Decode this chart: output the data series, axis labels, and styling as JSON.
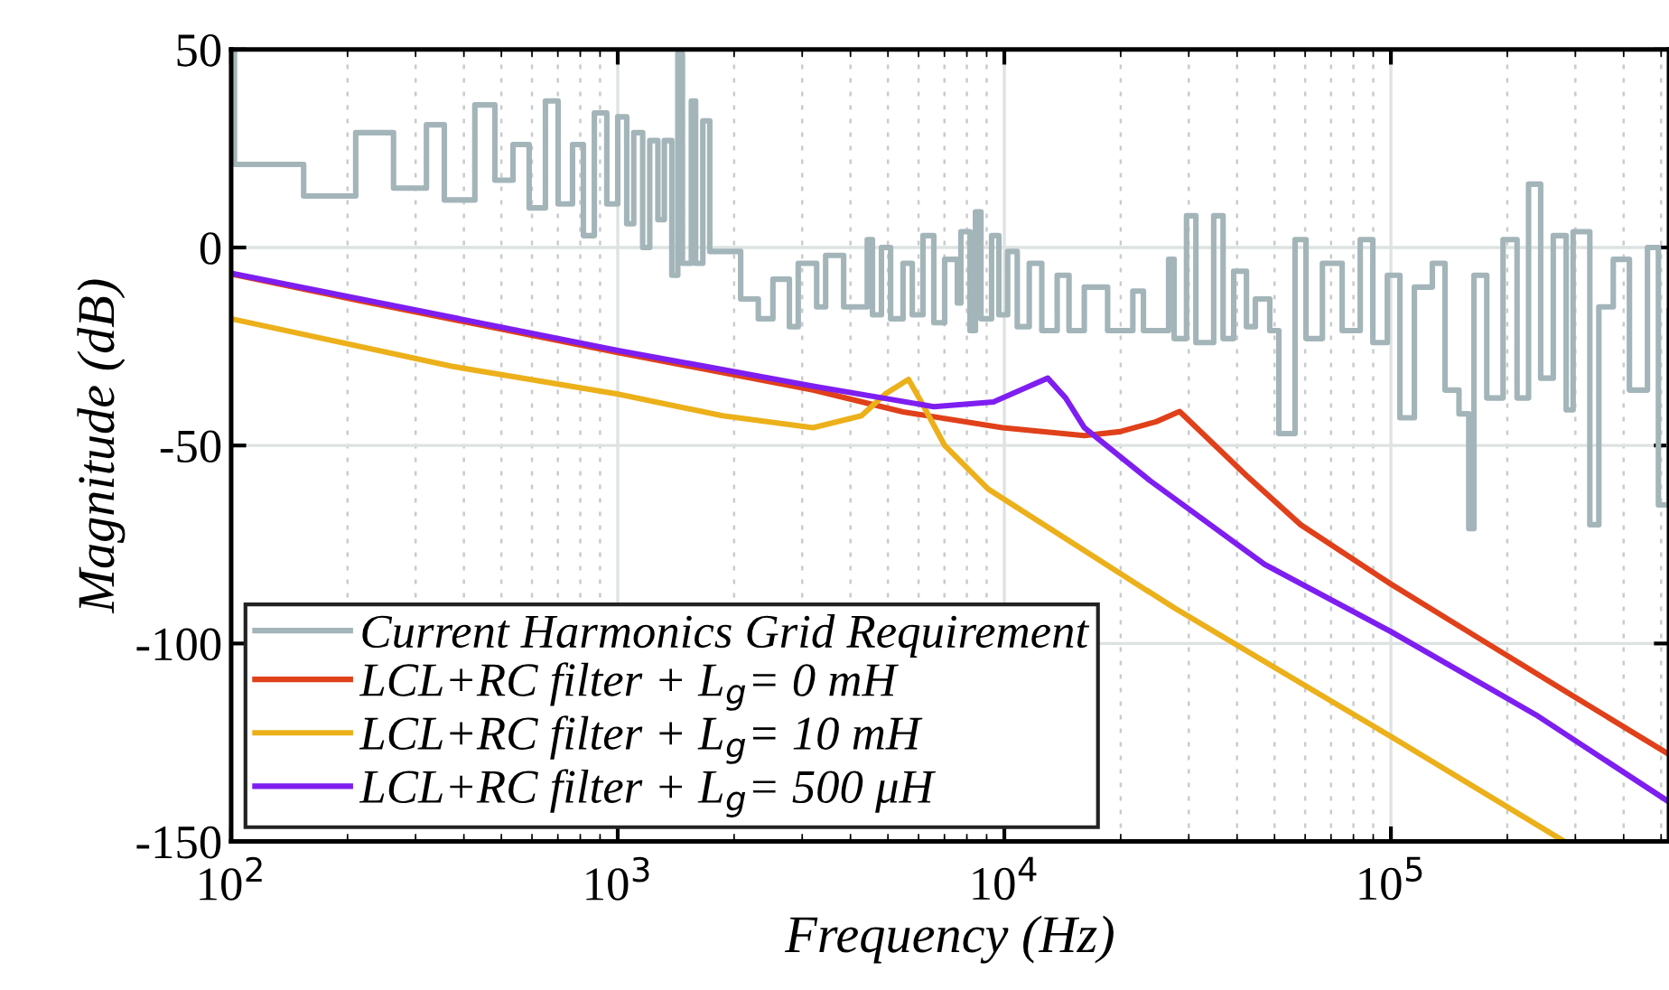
{
  "chart_data": {
    "type": "line",
    "xlabel": "Frequency (Hz)",
    "ylabel": "Magnitude (dB)",
    "log": "x",
    "grid": true,
    "legend": "bottom left",
    "xlim": [
      100,
      524000
    ],
    "xticks": [
      {
        "value": 100,
        "label": "10$^{2}$"
      },
      {
        "value": 1000,
        "label": "10$^{3}$"
      },
      {
        "value": 10000,
        "label": "10$^{4}$"
      },
      {
        "value": 100000,
        "label": "10$^{5}$"
      }
    ],
    "ylim": [
      -150,
      50
    ],
    "yticks": [
      -150,
      -100,
      -50,
      0,
      50
    ],
    "series": [
      {
        "name": "Current Harmonics Grid Requirement",
        "type": "step",
        "color": "#a3b5b9",
        "x": [
          100,
          102,
          154,
          210,
          263,
          320,
          356,
          427,
          481,
          536,
          590,
          650,
          701,
          764,
          815,
          870,
          937,
          1000,
          1055,
          1100,
          1160,
          1210,
          1270,
          1320,
          1380,
          1430,
          1470,
          1550,
          1590,
          1660,
          1730,
          2080,
          2310,
          2520,
          2780,
          2930,
          3270,
          3450,
          3840,
          4420,
          4560,
          4810,
          5080,
          5470,
          5780,
          6160,
          6570,
          7010,
          7560,
          7720,
          8150,
          8420,
          8700,
          9270,
          9680,
          10200,
          10800,
          11600,
          12500,
          13700,
          14700,
          16100,
          18500,
          21500,
          22900,
          26600,
          27500,
          29600,
          31300,
          34800,
          36800,
          39200,
          42300,
          44600,
          48600,
          51300,
          56500,
          60300,
          66500,
          74800,
          83300,
          89800,
          97900,
          105500,
          115000,
          128000,
          138000,
          150000,
          159000,
          164000,
          177000,
          195000,
          212000,
          227000,
          244000,
          263000,
          284000,
          296000,
          327000,
          345000,
          376000,
          414000,
          461000,
          492000,
          524000
        ],
        "values": [
          50,
          21,
          13,
          29,
          15,
          31,
          12,
          36,
          17,
          26,
          10,
          37,
          11,
          26,
          3,
          34,
          11,
          33,
          6,
          29,
          0,
          27,
          7,
          27,
          -7,
          49,
          -4,
          37,
          -4,
          32,
          -1,
          -13,
          -18,
          -8,
          -20,
          -4,
          -15,
          -2,
          -15,
          2,
          -17,
          0,
          -18,
          -4,
          -17,
          3,
          -19,
          -3,
          -14,
          4,
          -21,
          9,
          -18,
          3,
          -17,
          -1,
          -20,
          -4,
          -21,
          -7,
          -21,
          -10,
          -21,
          -11,
          -21,
          -3,
          -23,
          8,
          -24,
          8,
          -23,
          -6,
          -20,
          -13,
          -21,
          -47,
          2,
          -23,
          -4,
          -21,
          2,
          -24,
          -7,
          -43,
          -10,
          -4,
          -36,
          -42,
          -71,
          -7,
          -38,
          2,
          -38,
          16,
          -33,
          3,
          -41,
          4,
          -70,
          -15,
          -3,
          -36,
          0,
          -65,
          -16
        ]
      },
      {
        "name": "LCL+RC filter + L$_{g}$= 0 mH",
        "color": "#e0401a",
        "x": [
          100,
          217,
          1000,
          3200,
          5470,
          9890,
          16100,
          19900,
          24700,
          28400,
          33000,
          42300,
          58400,
          100000,
          171000,
          293000,
          524000
        ],
        "values": [
          -6.7,
          -13.5,
          -26.5,
          -36,
          -41.5,
          -45.5,
          -47.5,
          -46.5,
          -44,
          -41.4,
          -47.5,
          -57.6,
          -70,
          -85,
          -99,
          -113,
          -128
        ]
      },
      {
        "name": "LCL+RC filter + L$_{g}$= 10 mH",
        "color": "#ecb01a",
        "x": [
          100,
          372,
          1000,
          1867,
          3200,
          4270,
          4920,
          5650,
          6100,
          7010,
          9080,
          27500,
          100000,
          281000
        ],
        "values": [
          -18,
          -30,
          -37,
          -42.5,
          -45.5,
          -42.5,
          -37,
          -33.3,
          -39,
          -50,
          -61,
          -91,
          -123.5,
          -150
        ]
      },
      {
        "name": "LCL+RC filter + L$_{g}$= 500 μH",
        "color": "#7e1ef0",
        "x": [
          100,
          1000,
          3200,
          6570,
          9370,
          11260,
          12950,
          14410,
          16100,
          23900,
          47100,
          100000,
          237000,
          524000
        ],
        "values": [
          -6.5,
          -26,
          -35,
          -40.2,
          -39,
          -35.6,
          -33,
          -38,
          -45.5,
          -59,
          -80,
          -97,
          -118,
          -140
        ]
      }
    ]
  }
}
